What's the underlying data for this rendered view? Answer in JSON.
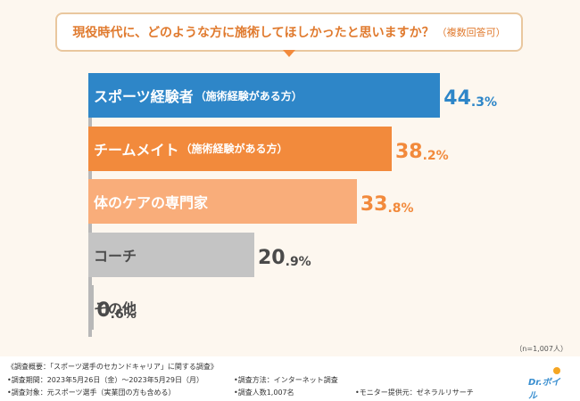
{
  "title": {
    "main": "現役時代に、どのような方に施術してほしかったと思いますか？",
    "sub": "（複数回答可）"
  },
  "chart_data": {
    "type": "bar",
    "orientation": "horizontal",
    "categories": [
      {
        "label": "スポーツ経験者",
        "sub": "（施術経験がある方）"
      },
      {
        "label": "チームメイト",
        "sub": "（施術経験がある方）"
      },
      {
        "label": "体のケアの専門家",
        "sub": ""
      },
      {
        "label": "コーチ",
        "sub": ""
      },
      {
        "label": "その他",
        "sub": ""
      }
    ],
    "values": [
      44.3,
      38.2,
      33.8,
      20.9,
      0.6
    ],
    "unit": "%",
    "xlim": [
      0,
      50
    ],
    "colors": [
      "#2e86c8",
      "#f28a3c",
      "#f9ad7a",
      "#c4c4c4",
      "#b8b8b8"
    ],
    "value_colors": [
      "#2e86c8",
      "#f28a3c",
      "#f28a3c",
      "#4a4a4a",
      "#4a4a4a"
    ]
  },
  "sample_note": "（n=1,007人）",
  "footer": {
    "survey_name": "《調査概要：「スポーツ選手のセカンドキャリア」に関する調査》",
    "period": "•調査期間：2023年5月26日（金）〜2023年5月29日（月）",
    "method": "•調査方法：インターネット調査",
    "target": "•調査対象：元スポーツ選手（実業団の方も含める）",
    "count": "•調査人数1,007名",
    "monitor": "•モニター提供元：ゼネラルリサーチ"
  },
  "logo": {
    "text": "Dr.ボイル"
  }
}
